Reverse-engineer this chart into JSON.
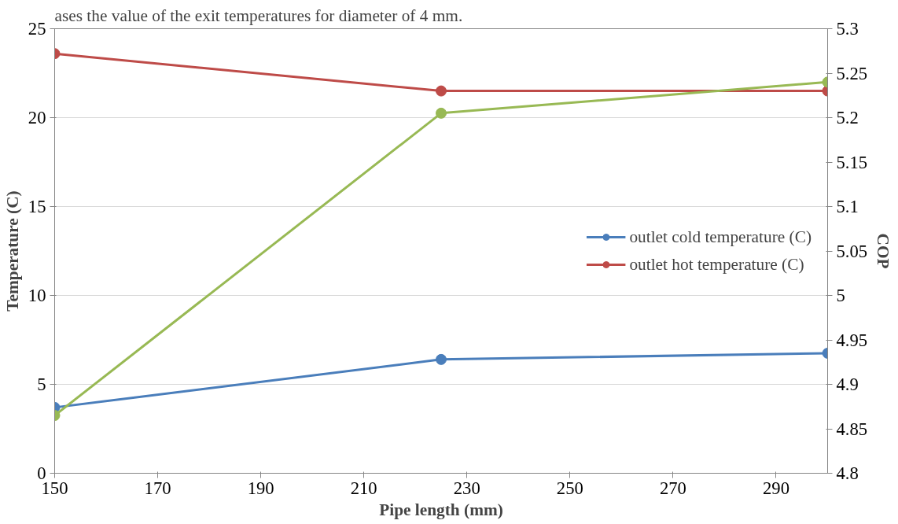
{
  "chart_data": {
    "type": "line",
    "xlabel": "Pipe length (mm)",
    "ylabel": "Temperature (C)",
    "y2label": "COP",
    "annotations": [
      "ases the value of the exit temperatures for        diameter of 4 mm."
    ],
    "x": [
      150,
      225,
      300
    ],
    "series": [
      {
        "name": "outlet cold temperature (C)",
        "color": "#4a7ebb",
        "values": [
          3.7,
          6.4,
          6.75
        ]
      },
      {
        "name": "outlet hot temperature (C)",
        "color": "#be4b48",
        "values": [
          23.6,
          21.5,
          21.5
        ]
      },
      {
        "color": "#98b954",
        "values": [
          4.865,
          5.205,
          5.24
        ],
        "axis": "y2"
      }
    ],
    "xlim": [
      150,
      300
    ],
    "xticks": [
      150,
      170,
      190,
      210,
      230,
      250,
      270,
      290
    ],
    "ylim": [
      0,
      25
    ],
    "yticks": [
      0,
      5,
      10,
      15,
      20,
      25
    ],
    "y2lim": [
      4.8,
      5.3
    ],
    "y2ticks": [
      4.8,
      4.85,
      4.9,
      4.95,
      5,
      5.05,
      5.1,
      5.15,
      5.2,
      5.25,
      5.3
    ],
    "grid": "y",
    "legend": "right",
    "marker": "circle",
    "line_style": "solid"
  }
}
